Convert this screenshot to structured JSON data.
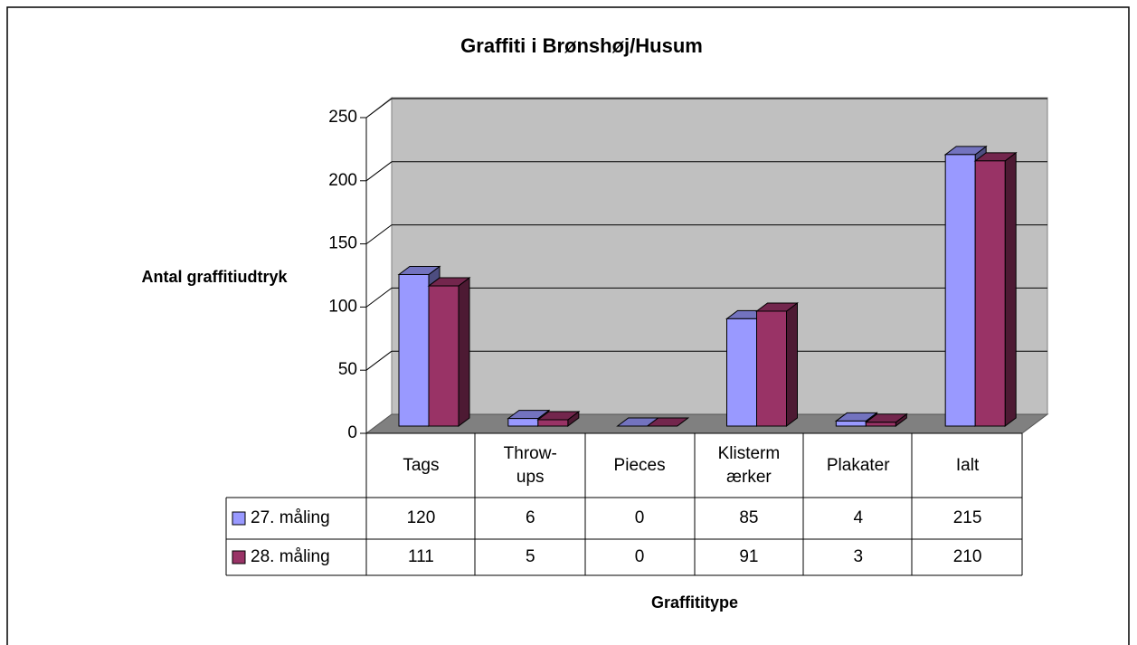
{
  "chart_data": {
    "type": "bar3d",
    "title": "Graffiti i Brønshøj/Husum",
    "y_label": "Antal graffitiudtryk",
    "x_label": "Graffititype",
    "categories": [
      "Tags",
      "Throw-ups",
      "Pieces",
      "Klistermærker",
      "Plakater",
      "Ialt"
    ],
    "series": [
      {
        "name": "27. måling",
        "color": "#9999ff",
        "values": [
          120,
          6,
          0,
          85,
          4,
          215
        ]
      },
      {
        "name": "28. måling",
        "color": "#993366",
        "values": [
          111,
          5,
          0,
          91,
          3,
          210
        ]
      }
    ],
    "ylim": [
      0,
      250
    ],
    "yticks": [
      0,
      50,
      100,
      150,
      200,
      250
    ],
    "grid": true
  }
}
